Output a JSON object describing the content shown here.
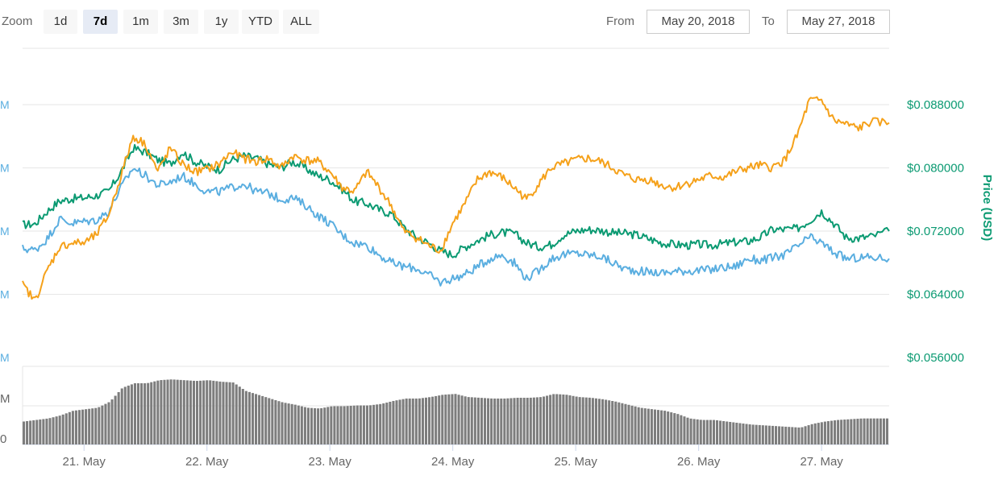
{
  "toolbar": {
    "zoom_label": "Zoom",
    "zoom_buttons": [
      "1d",
      "7d",
      "1m",
      "3m",
      "1y",
      "YTD",
      "ALL"
    ],
    "active_zoom": "7d",
    "from_label": "From",
    "from_value": "May 20, 2018",
    "to_label": "To",
    "to_value": "May 27, 2018"
  },
  "colors": {
    "price": "#0b9a72",
    "blue_series": "#5aaee0",
    "orange_series": "#f5a11a",
    "volume": "#7d7d7d",
    "grid": "#e6e6e6"
  },
  "chart_data": {
    "type": "line",
    "xlabel": "",
    "ylabel": "Price (USD)",
    "x_ticks": [
      "21. May",
      "22. May",
      "23. May",
      "24. May",
      "25. May",
      "26. May",
      "27. May"
    ],
    "y_ticks": [
      "$0.088000",
      "$0.080000",
      "$0.072000",
      "$0.064000",
      "$0.056000"
    ],
    "left_ticks": [
      "M",
      "M",
      "M",
      "M",
      "M"
    ],
    "volume_ticks": [
      "M",
      "0"
    ],
    "ylim": [
      0.056,
      0.088
    ],
    "grid": true,
    "x": [
      20.5,
      20.6,
      20.7,
      20.8,
      20.9,
      21.0,
      21.1,
      21.2,
      21.3,
      21.4,
      21.5,
      21.6,
      21.7,
      21.8,
      21.9,
      22.0,
      22.1,
      22.2,
      22.3,
      22.4,
      22.5,
      22.6,
      22.7,
      22.8,
      22.9,
      23.0,
      23.1,
      23.2,
      23.3,
      23.4,
      23.5,
      23.6,
      23.7,
      23.8,
      23.9,
      24.0,
      24.1,
      24.2,
      24.3,
      24.4,
      24.5,
      24.6,
      24.7,
      24.8,
      24.9,
      25.0,
      25.1,
      25.2,
      25.3,
      25.4,
      25.5,
      25.6,
      25.7,
      25.8,
      25.9,
      26.0,
      26.1,
      26.2,
      26.3,
      26.4,
      26.5,
      26.6,
      26.7,
      26.8,
      26.9,
      27.0,
      27.1,
      27.2,
      27.3,
      27.4,
      27.55
    ],
    "series": [
      {
        "color": "#0b9a72",
        "values": [
          0.0728,
          0.0729,
          0.0745,
          0.0758,
          0.0761,
          0.0762,
          0.0765,
          0.077,
          0.0795,
          0.0825,
          0.082,
          0.081,
          0.0805,
          0.082,
          0.0808,
          0.0802,
          0.0798,
          0.081,
          0.0815,
          0.0812,
          0.0805,
          0.08,
          0.0808,
          0.08,
          0.079,
          0.0785,
          0.0773,
          0.0758,
          0.0755,
          0.0747,
          0.0742,
          0.0725,
          0.0713,
          0.0705,
          0.0695,
          0.069,
          0.07,
          0.0708,
          0.0715,
          0.0718,
          0.0717,
          0.0705,
          0.07,
          0.0703,
          0.0715,
          0.072,
          0.0722,
          0.0721,
          0.0718,
          0.0717,
          0.0715,
          0.071,
          0.0705,
          0.0703,
          0.0702,
          0.0703,
          0.0702,
          0.0704,
          0.0706,
          0.0707,
          0.0712,
          0.0722,
          0.0722,
          0.0723,
          0.0733,
          0.0745,
          0.073,
          0.0712,
          0.0711,
          0.0713,
          0.072
        ]
      },
      {
        "color": "#5aaee0",
        "values": [
          0.0698,
          0.0696,
          0.071,
          0.0735,
          0.073,
          0.0732,
          0.0734,
          0.0745,
          0.0775,
          0.08,
          0.079,
          0.0778,
          0.0782,
          0.079,
          0.078,
          0.077,
          0.077,
          0.0775,
          0.078,
          0.077,
          0.0768,
          0.076,
          0.0762,
          0.0753,
          0.074,
          0.073,
          0.0715,
          0.0705,
          0.0702,
          0.069,
          0.068,
          0.0675,
          0.0673,
          0.0665,
          0.0655,
          0.066,
          0.0665,
          0.0675,
          0.0685,
          0.069,
          0.068,
          0.066,
          0.067,
          0.0685,
          0.069,
          0.0692,
          0.069,
          0.0688,
          0.068,
          0.0672,
          0.067,
          0.0668,
          0.0667,
          0.0669,
          0.067,
          0.067,
          0.0671,
          0.0674,
          0.0675,
          0.0685,
          0.0683,
          0.0686,
          0.069,
          0.07,
          0.0712,
          0.0705,
          0.0693,
          0.0685,
          0.0686,
          0.0687,
          0.0685
        ]
      },
      {
        "color": "#f5a11a",
        "values": [
          0.0652,
          0.0632,
          0.067,
          0.07,
          0.0705,
          0.0705,
          0.0715,
          0.074,
          0.079,
          0.084,
          0.083,
          0.0795,
          0.0825,
          0.0805,
          0.0795,
          0.0798,
          0.0805,
          0.082,
          0.0812,
          0.0808,
          0.0812,
          0.08,
          0.0815,
          0.081,
          0.0808,
          0.0795,
          0.0775,
          0.077,
          0.0795,
          0.0775,
          0.0752,
          0.072,
          0.0712,
          0.0702,
          0.0695,
          0.073,
          0.0755,
          0.0785,
          0.0795,
          0.0788,
          0.0775,
          0.076,
          0.078,
          0.08,
          0.0805,
          0.081,
          0.0812,
          0.0808,
          0.08,
          0.079,
          0.0785,
          0.0785,
          0.0778,
          0.0775,
          0.078,
          0.0785,
          0.079,
          0.0788,
          0.0795,
          0.08,
          0.0803,
          0.08,
          0.081,
          0.084,
          0.0885,
          0.0885,
          0.086,
          0.0855,
          0.085,
          0.0858,
          0.0857
        ]
      }
    ],
    "volume_values": [
      0.3,
      0.32,
      0.34,
      0.38,
      0.44,
      0.46,
      0.48,
      0.56,
      0.74,
      0.8,
      0.8,
      0.84,
      0.85,
      0.84,
      0.83,
      0.84,
      0.82,
      0.81,
      0.7,
      0.65,
      0.6,
      0.55,
      0.52,
      0.48,
      0.47,
      0.5,
      0.5,
      0.51,
      0.51,
      0.53,
      0.57,
      0.6,
      0.6,
      0.62,
      0.65,
      0.66,
      0.62,
      0.61,
      0.6,
      0.6,
      0.61,
      0.61,
      0.62,
      0.66,
      0.65,
      0.62,
      0.61,
      0.59,
      0.56,
      0.52,
      0.48,
      0.46,
      0.44,
      0.4,
      0.34,
      0.32,
      0.32,
      0.3,
      0.28,
      0.26,
      0.25,
      0.24,
      0.23,
      0.22,
      0.27,
      0.3,
      0.32,
      0.33,
      0.34,
      0.34,
      0.34
    ]
  }
}
